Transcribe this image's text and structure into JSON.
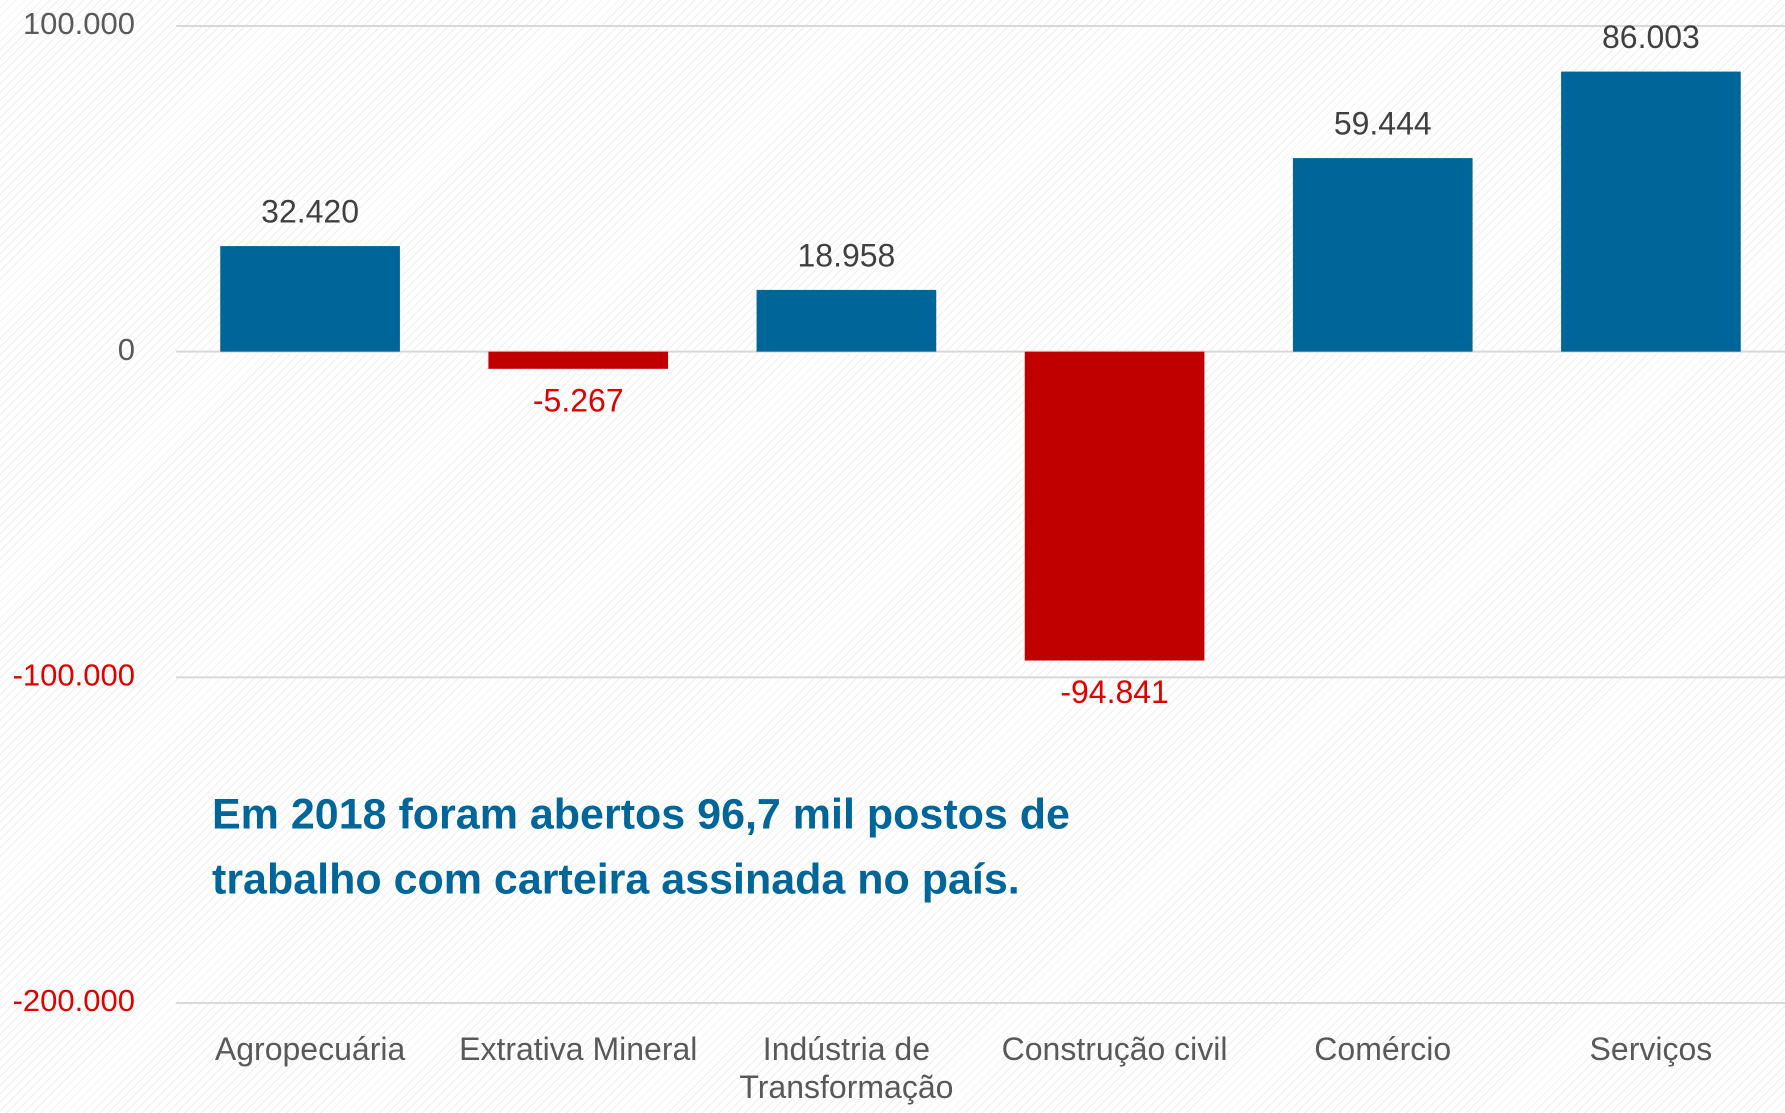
{
  "chart_data": {
    "type": "bar",
    "categories": [
      "Agropecuária",
      "Extrativa Mineral",
      "Indústria de Transformação",
      "Construção civil",
      "Comércio",
      "Serviços"
    ],
    "values": [
      32420,
      -5267,
      18958,
      -94841,
      59444,
      86003
    ],
    "value_labels": [
      "32.420",
      "-5.267",
      "18.958",
      "-94.841",
      "59.444",
      "86.003"
    ],
    "colors": [
      "#006699",
      "#c00000",
      "#006699",
      "#c00000",
      "#006699",
      "#006699"
    ],
    "ylim": [
      -200000,
      100000
    ],
    "yticks": [
      {
        "value": -200000,
        "label": "-200.000"
      },
      {
        "value": -100000,
        "label": "-100.000"
      },
      0,
      {
        "value": 100000,
        "label": "100.000"
      }
    ],
    "grid": true,
    "annotation": [
      "Em 2018 foram abertos 96,7 mil postos de",
      "trabalho com carteira assinada no país."
    ]
  }
}
